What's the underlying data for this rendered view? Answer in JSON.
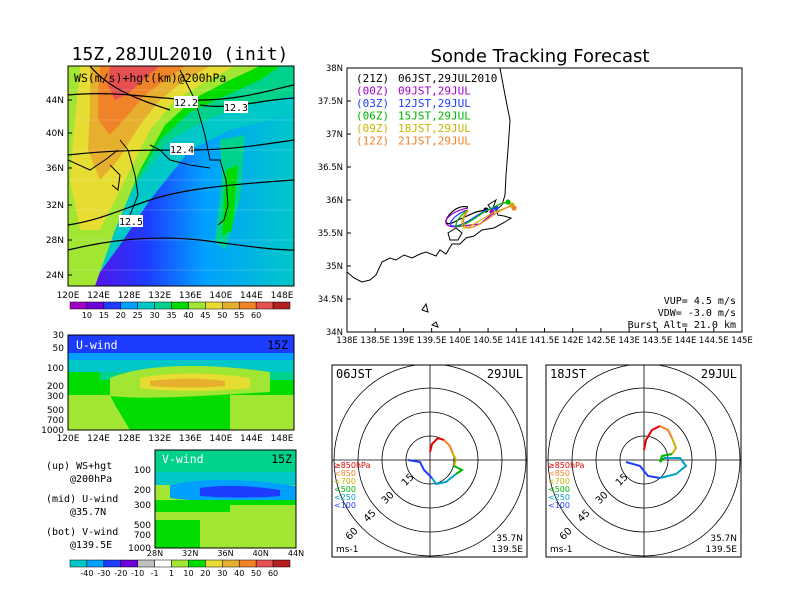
{
  "left_title": "15Z,28JUL2010 (init)",
  "right_title": "Sonde Tracking Forecast",
  "colors": {
    "c10": "#a000c8",
    "c15": "#6e00dc",
    "c20": "#1e3cff",
    "c25": "#00a0ff",
    "c30": "#00c8c8",
    "c35": "#00d28c",
    "c40": "#00dc00",
    "c45": "#a0e632",
    "c50": "#e6dc32",
    "c55": "#e6af2d",
    "c60": "#f08228"
  },
  "chart_data": [
    {
      "type": "heatmap",
      "name": "ws-hgt-200hpa",
      "label": "WS(m/s)+hgt(km)@200hPa",
      "x_ticks": [
        "120E",
        "124E",
        "128E",
        "132E",
        "136E",
        "140E",
        "144E",
        "148E"
      ],
      "y_ticks": [
        "44N",
        "40N",
        "36N",
        "32N",
        "28N",
        "24N"
      ],
      "contour_labels": [
        "12.2",
        "12.3",
        "12.4",
        "12.5"
      ],
      "colorbar": [
        "10",
        "15",
        "20",
        "25",
        "30",
        "35",
        "40",
        "45",
        "50",
        "55",
        "60"
      ]
    },
    {
      "type": "heatmap",
      "name": "u-wind",
      "label": "U-wind",
      "time": "15Z",
      "x_ticks": [
        "120E",
        "124E",
        "128E",
        "132E",
        "136E",
        "140E",
        "144E",
        "148E"
      ],
      "y_ticks": [
        "30",
        "50",
        "100",
        "200",
        "300",
        "500",
        "700",
        "1000"
      ]
    },
    {
      "type": "heatmap",
      "name": "v-wind",
      "label": "V-wind",
      "time": "15Z",
      "x_ticks": [
        "28N",
        "32N",
        "36N",
        "40N",
        "44N"
      ],
      "y_ticks": [
        "100",
        "200",
        "300",
        "500",
        "700",
        "1000"
      ],
      "colorbar": [
        "-40",
        "-30",
        "-20",
        "-10",
        "-1",
        "1",
        "10",
        "20",
        "30",
        "40",
        "50",
        "60"
      ]
    },
    {
      "type": "line",
      "name": "track-map",
      "x_ticks": [
        "138E",
        "138.5E",
        "139E",
        "139.5E",
        "140E",
        "140.5E",
        "141E",
        "141.5E",
        "142E",
        "142.5E",
        "143E",
        "143.5E",
        "144E",
        "144.5E",
        "145E"
      ],
      "y_ticks": [
        "38N",
        "37.5N",
        "37N",
        "36.5N",
        "36N",
        "35.5N",
        "35N",
        "34.5N",
        "34N"
      ],
      "legend": [
        {
          "code": "(21Z)",
          "time": "06JST,29JUL2010",
          "color": "#000000"
        },
        {
          "code": "(00Z)",
          "time": "09JST,29JUL",
          "color": "#a000c8"
        },
        {
          "code": "(03Z)",
          "time": "12JST,29JUL",
          "color": "#1e3cff"
        },
        {
          "code": "(06Z)",
          "time": "15JST,29JUL",
          "color": "#00b400"
        },
        {
          "code": "(09Z)",
          "time": "18JST,29JUL",
          "color": "#c8b400"
        },
        {
          "code": "(12Z)",
          "time": "21JST,29JUL",
          "color": "#f08228"
        }
      ],
      "info": [
        "VUP= 4.5 m/s",
        "VDW= -3.0 m/s",
        "Burst Alt= 21.0 km"
      ]
    },
    {
      "type": "line",
      "name": "hodograph-06jst",
      "time": "06JST",
      "date": "29JUL",
      "ring_labels": [
        "15",
        "30",
        "45",
        "60"
      ],
      "levels": [
        "≥850hPa",
        "<850",
        "<700",
        "<500",
        "<250",
        "<100"
      ],
      "unit": "ms-1",
      "location": [
        "35.7N",
        "139.5E"
      ]
    },
    {
      "type": "line",
      "name": "hodograph-18jst",
      "time": "18JST",
      "date": "29JUL",
      "ring_labels": [
        "15",
        "30",
        "45",
        "60"
      ],
      "levels": [
        "≥850hPa",
        "<850",
        "<700",
        "<500",
        "<250",
        "<100"
      ],
      "unit": "ms-1",
      "location": [
        "35.7N",
        "139.5E"
      ]
    }
  ],
  "left_legend": [
    {
      "a": "(up) WS+hgt",
      "b": "@200hPa"
    },
    {
      "a": "(mid) U-wind",
      "b": "@35.7N"
    },
    {
      "a": "(bot) V-wind",
      "b": "@139.5E"
    }
  ]
}
